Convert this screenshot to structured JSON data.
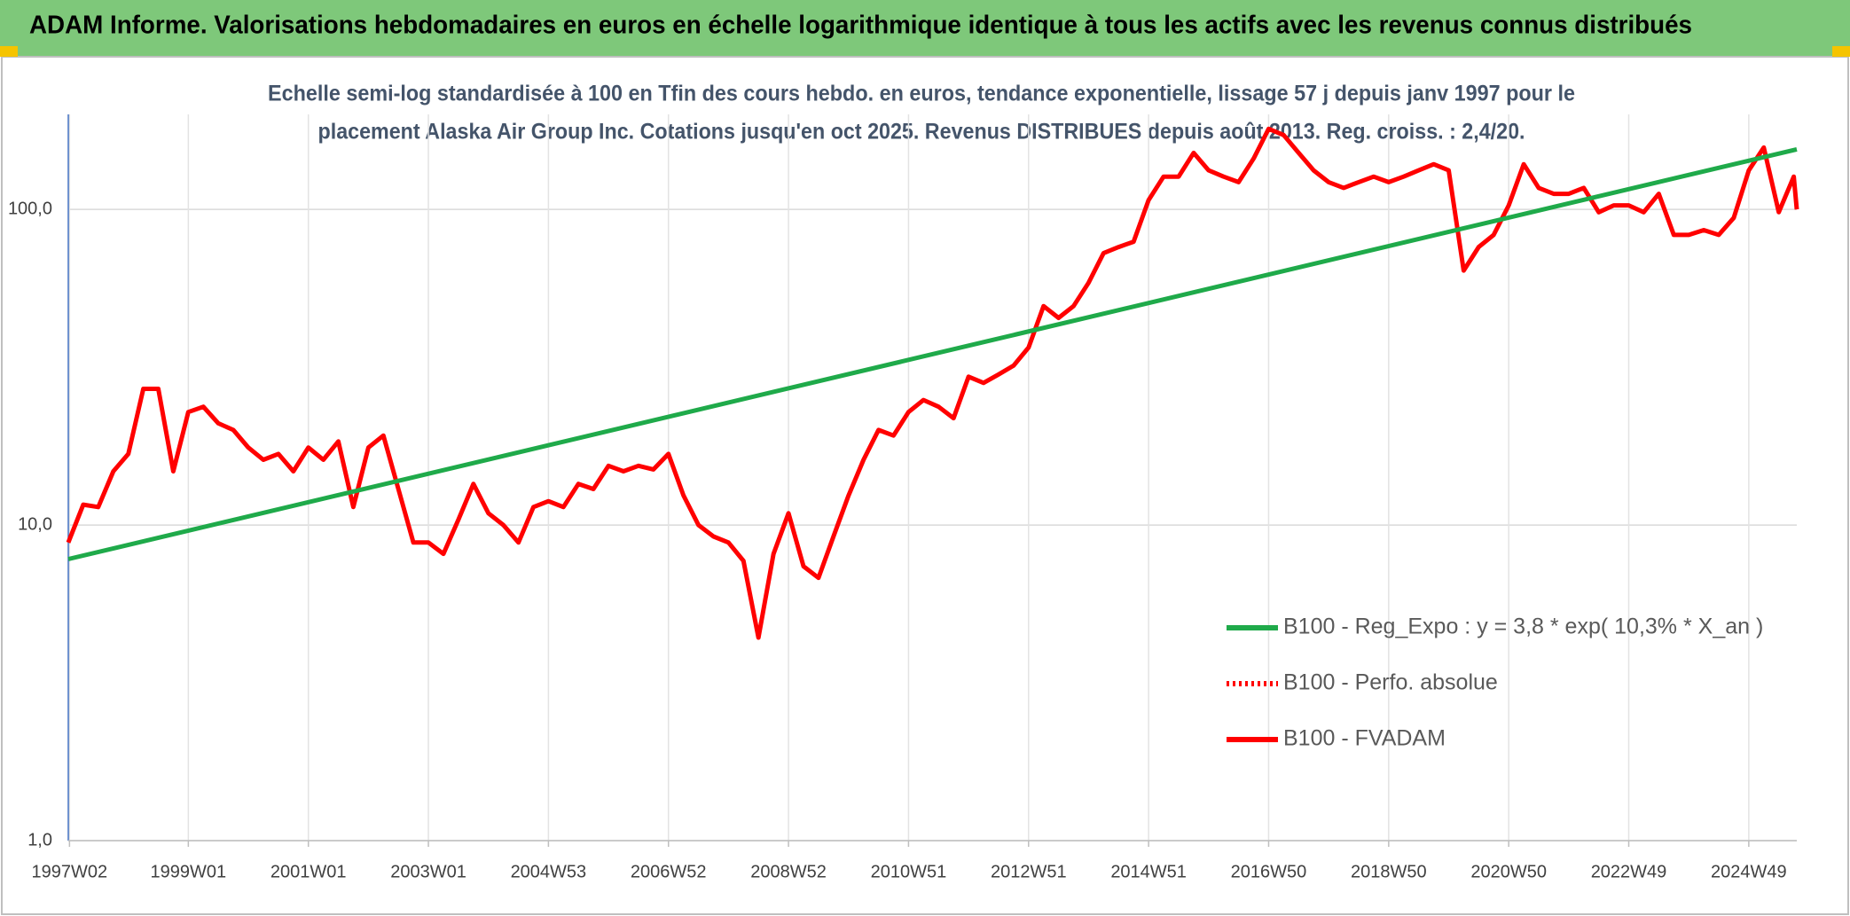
{
  "chart_data": {
    "type": "line",
    "title": "ADAM Informe. Valorisations hebdomadaires en euros en échelle logarithmique identique à tous les actifs avec les revenus connus distribués",
    "subtitle": [
      "Echelle semi-log standardisée à 100 en Tfin des cours hebdo. en euros, tendance exponentielle, lissage 57 j depuis janv 1997 pour le",
      "placement Alaska Air Group Inc. Cotations jusqu'en oct 2025. Revenus DISTRIBUES depuis août 2013. Reg. croiss. : 2,4/20."
    ],
    "log_scale": true,
    "grid": true,
    "legend": "right",
    "xlim": [
      1997.0,
      2025.8
    ],
    "xticks": [
      {
        "value": 1997.02,
        "label": "1997W02"
      },
      {
        "value": 1999.0,
        "label": "1999W01"
      },
      {
        "value": 2001.0,
        "label": "2001W01"
      },
      {
        "value": 2003.0,
        "label": "2003W01"
      },
      {
        "value": 2005.0,
        "label": "2004W53"
      },
      {
        "value": 2007.0,
        "label": "2006W52"
      },
      {
        "value": 2009.0,
        "label": "2008W52"
      },
      {
        "value": 2011.0,
        "label": "2010W51"
      },
      {
        "value": 2013.0,
        "label": "2012W51"
      },
      {
        "value": 2015.0,
        "label": "2014W51"
      },
      {
        "value": 2017.0,
        "label": "2016W50"
      },
      {
        "value": 2019.0,
        "label": "2018W50"
      },
      {
        "value": 2021.0,
        "label": "2020W50"
      },
      {
        "value": 2023.0,
        "label": "2022W49"
      },
      {
        "value": 2025.0,
        "label": "2024W49"
      }
    ],
    "ylim": [
      1,
      200
    ],
    "yticks": [
      {
        "value": 1,
        "label": "1,0"
      },
      {
        "value": 10,
        "label": "10,0"
      },
      {
        "value": 100,
        "label": "100,0"
      }
    ],
    "x": [
      1997.0,
      1997.25,
      1997.5,
      1997.75,
      1998.0,
      1998.25,
      1998.5,
      1998.75,
      1999.0,
      1999.25,
      1999.5,
      1999.75,
      2000.0,
      2000.25,
      2000.5,
      2000.75,
      2001.0,
      2001.25,
      2001.5,
      2001.75,
      2002.0,
      2002.25,
      2002.5,
      2002.75,
      2003.0,
      2003.25,
      2003.5,
      2003.75,
      2004.0,
      2004.25,
      2004.5,
      2004.75,
      2005.0,
      2005.25,
      2005.5,
      2005.75,
      2006.0,
      2006.25,
      2006.5,
      2006.75,
      2007.0,
      2007.25,
      2007.5,
      2007.75,
      2008.0,
      2008.25,
      2008.5,
      2008.75,
      2009.0,
      2009.25,
      2009.5,
      2009.75,
      2010.0,
      2010.25,
      2010.5,
      2010.75,
      2011.0,
      2011.25,
      2011.5,
      2011.75,
      2012.0,
      2012.25,
      2012.5,
      2012.75,
      2013.0,
      2013.25,
      2013.5,
      2013.75,
      2014.0,
      2014.25,
      2014.5,
      2014.75,
      2015.0,
      2015.25,
      2015.5,
      2015.75,
      2016.0,
      2016.25,
      2016.5,
      2016.75,
      2017.0,
      2017.25,
      2017.5,
      2017.75,
      2018.0,
      2018.25,
      2018.5,
      2018.75,
      2019.0,
      2019.25,
      2019.5,
      2019.75,
      2020.0,
      2020.25,
      2020.5,
      2020.75,
      2021.0,
      2021.25,
      2021.5,
      2021.75,
      2022.0,
      2022.25,
      2022.5,
      2022.75,
      2023.0,
      2023.25,
      2023.5,
      2023.75,
      2024.0,
      2024.25,
      2024.5,
      2024.75,
      2025.0,
      2025.25,
      2025.5,
      2025.75,
      2025.8
    ],
    "series": [
      {
        "name": "B100 - Reg_Expo : y = 3,8 * exp( 10,3% *  X_an )",
        "color": "#1faa4a",
        "dash": "solid",
        "x": [
          1997.0,
          2025.8
        ],
        "values": [
          7.8,
          155
        ]
      },
      {
        "name": "B100 - Perfo. absolue",
        "color": "#ff0000",
        "dash": "dotted",
        "values": [
          8.8,
          11.6,
          11.4,
          14.8,
          16.8,
          27,
          27,
          14.8,
          22.8,
          23.7,
          21,
          20,
          17.6,
          16.1,
          16.8,
          14.8,
          17.6,
          16.1,
          18.4,
          11.4,
          17.6,
          19.2,
          13,
          8.8,
          8.8,
          8.1,
          10.4,
          13.5,
          10.9,
          10,
          8.8,
          11.4,
          11.9,
          11.4,
          13.5,
          13,
          15.4,
          14.8,
          15.4,
          15,
          16.8,
          12.4,
          10,
          9.2,
          8.8,
          7.7,
          4.4,
          8.1,
          10.9,
          7.4,
          6.8,
          9.2,
          12.4,
          16.1,
          20,
          19.2,
          22.8,
          24.9,
          23.7,
          21.8,
          29.5,
          28.2,
          30,
          32,
          36.5,
          49.4,
          45.3,
          49.4,
          58.6,
          72.7,
          76,
          79,
          107,
          127,
          127,
          151,
          133,
          127,
          122,
          145,
          180,
          172,
          151,
          133,
          122,
          117,
          122,
          127,
          122,
          127,
          133,
          139,
          133,
          64,
          76,
          83,
          103,
          139,
          117,
          112,
          112,
          117,
          98,
          103,
          103,
          98,
          112,
          83,
          83,
          86,
          83,
          94,
          133,
          157,
          98,
          127,
          100
        ]
      },
      {
        "name": "B100 - FVADAM",
        "color": "#ff0000",
        "dash": "solid",
        "values": [
          8.8,
          11.6,
          11.4,
          14.8,
          16.8,
          27,
          27,
          14.8,
          22.8,
          23.7,
          21,
          20,
          17.6,
          16.1,
          16.8,
          14.8,
          17.6,
          16.1,
          18.4,
          11.4,
          17.6,
          19.2,
          13,
          8.8,
          8.8,
          8.1,
          10.4,
          13.5,
          10.9,
          10,
          8.8,
          11.4,
          11.9,
          11.4,
          13.5,
          13,
          15.4,
          14.8,
          15.4,
          15,
          16.8,
          12.4,
          10,
          9.2,
          8.8,
          7.7,
          4.4,
          8.1,
          10.9,
          7.4,
          6.8,
          9.2,
          12.4,
          16.1,
          20,
          19.2,
          22.8,
          24.9,
          23.7,
          21.8,
          29.5,
          28.2,
          30,
          32,
          36.5,
          49.4,
          45.3,
          49.4,
          58.6,
          72.7,
          76,
          79,
          107,
          127,
          127,
          151,
          133,
          127,
          122,
          145,
          180,
          172,
          151,
          133,
          122,
          117,
          122,
          127,
          122,
          127,
          133,
          139,
          133,
          64,
          76,
          83,
          103,
          139,
          117,
          112,
          112,
          117,
          98,
          103,
          103,
          98,
          112,
          83,
          83,
          86,
          83,
          94,
          133,
          157,
          98,
          127,
          100
        ]
      }
    ]
  }
}
